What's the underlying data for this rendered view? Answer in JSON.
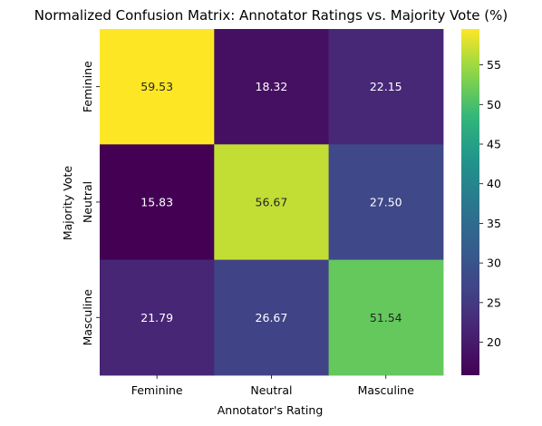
{
  "chart_data": {
    "type": "heatmap",
    "title": "Normalized Confusion Matrix: Annotator Ratings vs. Majority Vote (%)",
    "xlabel": "Annotator's Rating",
    "ylabel": "Majority Vote",
    "x_categories": [
      "Feminine",
      "Neutral",
      "Masculine"
    ],
    "y_categories": [
      "Feminine",
      "Neutral",
      "Masculine"
    ],
    "values": [
      [
        59.53,
        18.32,
        22.15
      ],
      [
        15.83,
        56.67,
        27.5
      ],
      [
        21.79,
        26.67,
        51.54
      ]
    ],
    "value_labels": [
      [
        "59.53",
        "18.32",
        "22.15"
      ],
      [
        "15.83",
        "56.67",
        "27.50"
      ],
      [
        "21.79",
        "26.67",
        "51.54"
      ]
    ],
    "colormap": "viridis",
    "vmin": 15.83,
    "vmax": 59.53,
    "colorbar_ticks": [
      "20",
      "25",
      "30",
      "35",
      "40",
      "45",
      "50",
      "55"
    ],
    "colorbar_tick_values": [
      20,
      25,
      30,
      35,
      40,
      45,
      50,
      55
    ],
    "annotation_text_colors": {
      "light": "#ffffff",
      "dark": "#262626"
    }
  }
}
